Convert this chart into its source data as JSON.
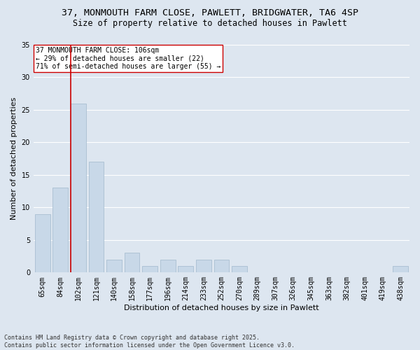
{
  "title1": "37, MONMOUTH FARM CLOSE, PAWLETT, BRIDGWATER, TA6 4SP",
  "title2": "Size of property relative to detached houses in Pawlett",
  "xlabel": "Distribution of detached houses by size in Pawlett",
  "ylabel": "Number of detached properties",
  "categories": [
    "65sqm",
    "84sqm",
    "102sqm",
    "121sqm",
    "140sqm",
    "158sqm",
    "177sqm",
    "196sqm",
    "214sqm",
    "233sqm",
    "252sqm",
    "270sqm",
    "289sqm",
    "307sqm",
    "326sqm",
    "345sqm",
    "363sqm",
    "382sqm",
    "401sqm",
    "419sqm",
    "438sqm"
  ],
  "values": [
    9,
    13,
    26,
    17,
    2,
    3,
    1,
    2,
    1,
    2,
    2,
    1,
    0,
    0,
    0,
    0,
    0,
    0,
    0,
    0,
    1
  ],
  "bar_color": "#c8d8e8",
  "bar_edge_color": "#a0b8cc",
  "vline_bar_index": 2,
  "vline_color": "#cc0000",
  "annotation_box_text": "37 MONMOUTH FARM CLOSE: 106sqm\n← 29% of detached houses are smaller (22)\n71% of semi-detached houses are larger (55) →",
  "ylim": [
    0,
    35
  ],
  "yticks": [
    0,
    5,
    10,
    15,
    20,
    25,
    30,
    35
  ],
  "background_color": "#dde6f0",
  "plot_bg_color": "#dde6f0",
  "footer_text": "Contains HM Land Registry data © Crown copyright and database right 2025.\nContains public sector information licensed under the Open Government Licence v3.0.",
  "grid_color": "#ffffff",
  "title_fontsize": 9.5,
  "subtitle_fontsize": 8.5,
  "annotation_fontsize": 7,
  "footer_fontsize": 6,
  "axis_label_fontsize": 8,
  "tick_fontsize": 7
}
